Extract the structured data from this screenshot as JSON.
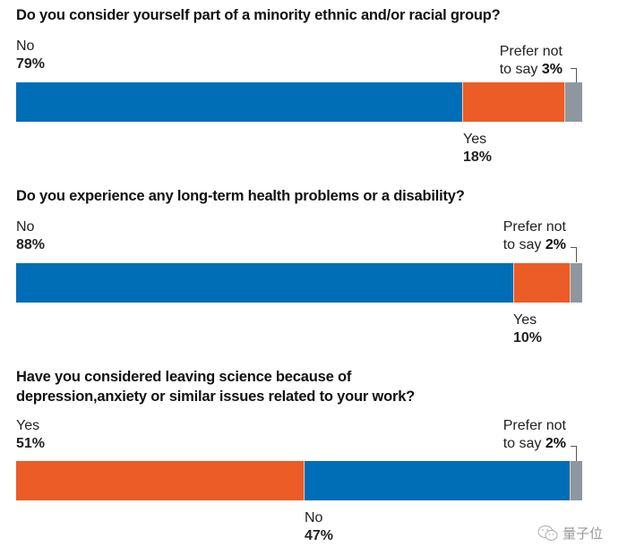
{
  "chart_data": [
    {
      "type": "bar",
      "orientation": "horizontal-stacked",
      "title": "Do you consider yourself part of a minority ethnic and/or racial group?",
      "categories": [
        "No",
        "Yes",
        "Prefer not to say"
      ],
      "values": [
        79,
        18,
        3
      ],
      "unit": "%",
      "labels": [
        {
          "text": "No",
          "value": "79%"
        },
        {
          "text": "Yes",
          "value": "18%"
        },
        {
          "text_line1": "Prefer not",
          "text_line2": "to say",
          "value": "3%"
        }
      ],
      "colors": [
        "#006EB6",
        "#EB5C26",
        "#8E979F"
      ],
      "xlim": [
        0,
        100
      ]
    },
    {
      "type": "bar",
      "orientation": "horizontal-stacked",
      "title": "Do you experience any long-term health problems or a disability?",
      "categories": [
        "No",
        "Yes",
        "Prefer not to say"
      ],
      "values": [
        88,
        10,
        2
      ],
      "unit": "%",
      "labels": [
        {
          "text": "No",
          "value": "88%"
        },
        {
          "text": "Yes",
          "value": "10%"
        },
        {
          "text_line1": "Prefer not",
          "text_line2": "to say",
          "value": "2%"
        }
      ],
      "colors": [
        "#006EB6",
        "#EB5C26",
        "#8E979F"
      ],
      "xlim": [
        0,
        100
      ]
    },
    {
      "type": "bar",
      "orientation": "horizontal-stacked",
      "title_line1": "Have you considered leaving science because of",
      "title_line2": "depression,anxiety or similar issues related to your work?",
      "categories": [
        "Yes",
        "No",
        "Prefer not to say"
      ],
      "values": [
        51,
        47,
        2
      ],
      "unit": "%",
      "labels": [
        {
          "text": "Yes",
          "value": "51%"
        },
        {
          "text": "No",
          "value": "47%"
        },
        {
          "text_line1": "Prefer not",
          "text_line2": "to say",
          "value": "2%"
        }
      ],
      "colors": [
        "#EB5C26",
        "#006EB6",
        "#8E979F"
      ],
      "xlim": [
        0,
        100
      ]
    }
  ],
  "watermark": {
    "text": "量子位",
    "icon": "wechat-icon"
  }
}
